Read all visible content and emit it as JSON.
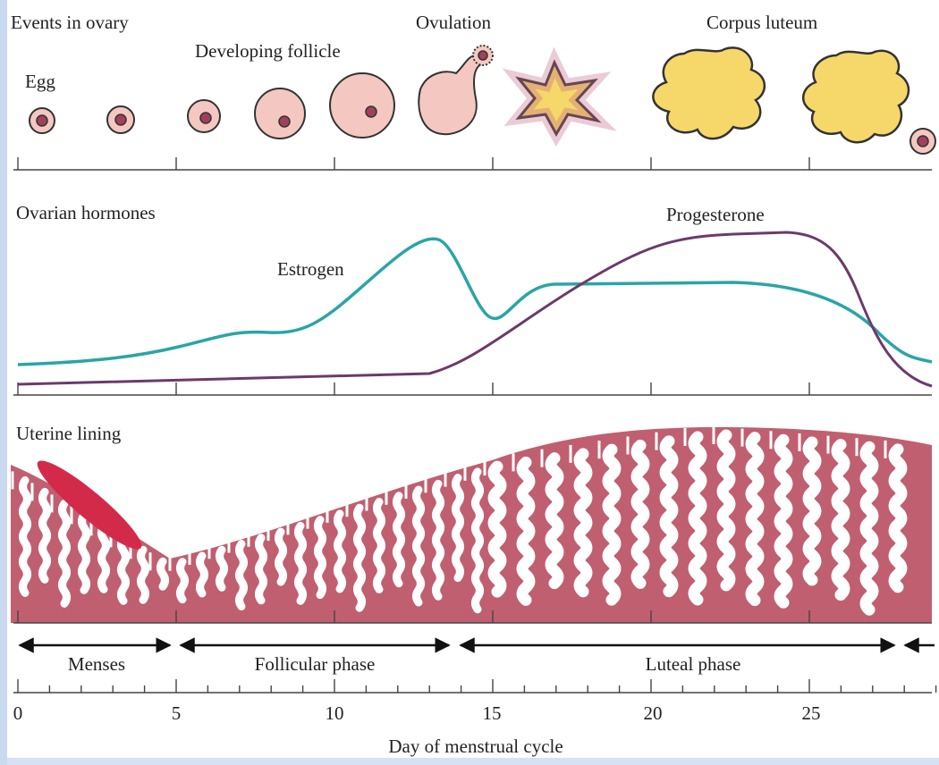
{
  "panels": {
    "ovary": {
      "title": "Events in ovary",
      "labels": [
        "Egg",
        "Developing follicle",
        "Ovulation",
        "Corpus luteum"
      ]
    },
    "hormones": {
      "title": "Ovarian hormones",
      "labels": [
        "Estrogen",
        "Progesterone"
      ]
    },
    "uterus": {
      "title": "Uterine lining"
    }
  },
  "phases": [
    "Menses",
    "Follicular phase",
    "Luteal phase"
  ],
  "axis": {
    "ticks": [
      "0",
      "5",
      "10",
      "15",
      "20",
      "25"
    ],
    "title": "Day of menstrual cycle"
  }
}
